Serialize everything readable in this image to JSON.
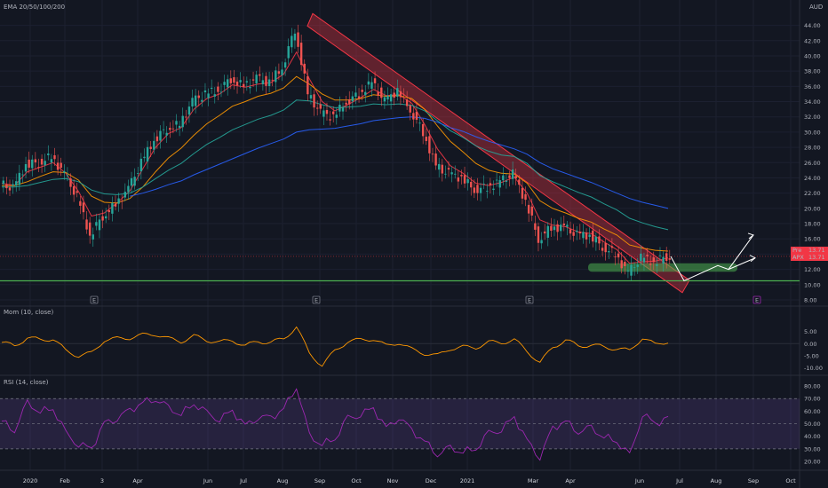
{
  "chart_data": [
    {
      "type": "candlestick",
      "title": "EMA 20/50/100/200",
      "currency": "AUD",
      "ylim": [
        8,
        45
      ],
      "y_ticks": [
        "44.00",
        "42.00",
        "40.00",
        "38.00",
        "36.00",
        "34.00",
        "32.00",
        "30.00",
        "28.00",
        "26.00",
        "24.00",
        "22.00",
        "20.00",
        "18.00",
        "16.00",
        "14.00",
        "12.00",
        "10.00",
        "8.00"
      ],
      "x_ticks": [
        "2020",
        "Feb",
        "3",
        "Apr",
        "Jun",
        "Jul",
        "Aug",
        "Sep",
        "Oct",
        "Nov",
        "Dec",
        "2021",
        "Mar",
        "Apr",
        "Jun",
        "Jul",
        "Aug",
        "Sep",
        "Oct"
      ],
      "close_series": [
        {
          "x": "2020-01",
          "y": 23.2
        },
        {
          "x": "2020-01-15",
          "y": 22.6
        },
        {
          "x": "2020-01-25",
          "y": 25.8
        },
        {
          "x": "2020-02-05",
          "y": 26.0
        },
        {
          "x": "2020-02-15",
          "y": 26.8
        },
        {
          "x": "2020-02-25",
          "y": 24.5
        },
        {
          "x": "2020-03-05",
          "y": 21.5
        },
        {
          "x": "2020-03-15",
          "y": 16.5
        },
        {
          "x": "2020-03-25",
          "y": 19.0
        },
        {
          "x": "2020-04-05",
          "y": 20.5
        },
        {
          "x": "2020-04-15",
          "y": 22.5
        },
        {
          "x": "2020-04-25",
          "y": 26.0
        },
        {
          "x": "2020-05-05",
          "y": 29.0
        },
        {
          "x": "2020-05-15",
          "y": 30.5
        },
        {
          "x": "2020-05-25",
          "y": 31.0
        },
        {
          "x": "2020-06-05",
          "y": 34.0
        },
        {
          "x": "2020-06-15",
          "y": 35.0
        },
        {
          "x": "2020-06-25",
          "y": 35.5
        },
        {
          "x": "2020-07-05",
          "y": 37.0
        },
        {
          "x": "2020-07-15",
          "y": 36.0
        },
        {
          "x": "2020-07-25",
          "y": 37.0
        },
        {
          "x": "2020-08-05",
          "y": 36.5
        },
        {
          "x": "2020-08-15",
          "y": 38.5
        },
        {
          "x": "2020-08-25",
          "y": 43.5
        },
        {
          "x": "2020-09-01",
          "y": 35.0
        },
        {
          "x": "2020-09-10",
          "y": 32.5
        },
        {
          "x": "2020-09-20",
          "y": 32.0
        },
        {
          "x": "2020-10-01",
          "y": 34.0
        },
        {
          "x": "2020-10-10",
          "y": 35.0
        },
        {
          "x": "2020-10-20",
          "y": 36.5
        },
        {
          "x": "2020-11-01",
          "y": 34.0
        },
        {
          "x": "2020-11-10",
          "y": 35.5
        },
        {
          "x": "2020-11-20",
          "y": 33.0
        },
        {
          "x": "2020-12-01",
          "y": 30.0
        },
        {
          "x": "2020-12-10",
          "y": 25.5
        },
        {
          "x": "2020-12-20",
          "y": 24.5
        },
        {
          "x": "2021-01-05",
          "y": 24.0
        },
        {
          "x": "2021-01-15",
          "y": 22.5
        },
        {
          "x": "2021-01-25",
          "y": 22.8
        },
        {
          "x": "2021-02-05",
          "y": 23.5
        },
        {
          "x": "2021-02-15",
          "y": 24.5
        },
        {
          "x": "2021-02-25",
          "y": 21.0
        },
        {
          "x": "2021-03-05",
          "y": 16.0
        },
        {
          "x": "2021-03-15",
          "y": 17.5
        },
        {
          "x": "2021-03-25",
          "y": 17.5
        },
        {
          "x": "2021-04-05",
          "y": 16.5
        },
        {
          "x": "2021-04-15",
          "y": 16.5
        },
        {
          "x": "2021-04-25",
          "y": 15.0
        },
        {
          "x": "2021-05-05",
          "y": 14.0
        },
        {
          "x": "2021-05-15",
          "y": 11.5
        },
        {
          "x": "2021-05-25",
          "y": 13.5
        },
        {
          "x": "2021-06-05",
          "y": 13.0
        },
        {
          "x": "2021-06-15",
          "y": 13.7
        }
      ],
      "ema": [
        {
          "name": "EMA 20",
          "color": "#f23645",
          "points": [
            23.3,
            23.0,
            24.8,
            25.4,
            26.0,
            24.6,
            22.2,
            19.0,
            19.4,
            20.7,
            22.3,
            25.2,
            28.0,
            29.8,
            30.6,
            33.0,
            34.4,
            35.0,
            36.2,
            35.9,
            36.3,
            36.5,
            37.6,
            40.5,
            37.0,
            34.0,
            32.8,
            33.6,
            34.5,
            35.6,
            34.8,
            34.9,
            33.8,
            31.0,
            27.8,
            25.6,
            24.6,
            23.3,
            23.0,
            23.4,
            24.1,
            22.0,
            18.5,
            17.8,
            17.6,
            16.9,
            16.7,
            15.6,
            14.6,
            12.8,
            13.0,
            13.1,
            13.5
          ]
        },
        {
          "name": "EMA 50",
          "color": "#ff9800",
          "points": [
            23.0,
            23.0,
            23.5,
            24.2,
            24.8,
            24.7,
            23.7,
            21.6,
            20.8,
            20.7,
            21.3,
            22.8,
            24.8,
            26.6,
            27.9,
            29.6,
            31.1,
            32.2,
            33.4,
            34.0,
            34.7,
            35.1,
            35.8,
            37.3,
            36.3,
            35.0,
            34.2,
            34.2,
            34.4,
            34.9,
            34.7,
            34.8,
            34.4,
            33.0,
            30.8,
            28.8,
            27.4,
            25.9,
            25.0,
            24.6,
            24.5,
            23.3,
            21.0,
            20.0,
            19.4,
            18.7,
            18.2,
            17.3,
            16.5,
            15.2,
            14.8,
            14.5,
            14.4
          ]
        },
        {
          "name": "EMA 100",
          "color": "#26a69a",
          "points": [
            22.8,
            22.8,
            23.0,
            23.4,
            23.8,
            23.9,
            23.5,
            22.4,
            21.9,
            21.8,
            22.0,
            22.8,
            23.9,
            25.0,
            25.9,
            27.2,
            28.4,
            29.3,
            30.3,
            31.0,
            31.7,
            32.2,
            32.9,
            34.2,
            34.1,
            33.6,
            33.2,
            33.3,
            33.4,
            33.7,
            33.6,
            33.7,
            33.5,
            32.8,
            31.5,
            30.2,
            29.3,
            28.2,
            27.5,
            27.0,
            26.8,
            25.9,
            24.3,
            23.5,
            22.8,
            22.1,
            21.5,
            20.6,
            19.8,
            18.7,
            18.1,
            17.6,
            17.2
          ]
        },
        {
          "name": "EMA 200",
          "color": "#2962ff",
          "points": [
            null,
            null,
            null,
            null,
            null,
            null,
            null,
            null,
            null,
            null,
            21.6,
            22.0,
            22.5,
            23.1,
            23.6,
            24.4,
            25.1,
            25.8,
            26.5,
            27.2,
            27.9,
            28.5,
            29.1,
            30.0,
            30.3,
            30.4,
            30.5,
            30.8,
            31.1,
            31.5,
            31.7,
            31.9,
            32.0,
            31.8,
            31.3,
            30.6,
            30.1,
            29.4,
            28.8,
            28.3,
            27.8,
            27.1,
            26.0,
            25.2,
            24.6,
            24.0,
            23.4,
            22.7,
            22.0,
            21.3,
            20.8,
            20.4,
            20.0
          ]
        }
      ],
      "price_labels": [
        {
          "label": "Pre",
          "value": "13.71",
          "color": "#f23645"
        },
        {
          "label": "APX",
          "value": "13.71",
          "color": "#f23645"
        }
      ],
      "annotations": [
        {
          "type": "channel",
          "color": "#f23645",
          "from": {
            "x": "2020-08-25",
            "y": 44.5
          },
          "to": {
            "x": "2021-07-01",
            "y": 10.0
          }
        },
        {
          "type": "zone",
          "color": "#4caf50",
          "ylim": [
            11.7,
            12.8
          ]
        },
        {
          "type": "horizontal_line",
          "color": "#4caf50",
          "y": 10.5
        },
        {
          "type": "projection",
          "color": "#ffffff",
          "path": [
            13.7,
            10.5,
            12.5,
            12.0,
            16.5
          ]
        },
        {
          "type": "projection",
          "color": "#ffffff",
          "path": [
            12.0,
            13.5
          ]
        }
      ],
      "event_markers": [
        "E",
        "E",
        "E",
        "E"
      ]
    },
    {
      "type": "line",
      "title": "Mom (10, close)",
      "ylim": [
        -12,
        10
      ],
      "y_ticks": [
        "5.00",
        "0.00",
        "-5.00",
        "-10.00"
      ],
      "series": [
        {
          "color": "#ff9800",
          "values": [
            0.5,
            -1.0,
            2.5,
            1.5,
            2.0,
            -3.0,
            -5.0,
            -4.0,
            1.5,
            2.0,
            2.5,
            3.5,
            4.0,
            2.0,
            1.0,
            3.0,
            1.5,
            0.5,
            1.5,
            -1.0,
            1.0,
            0.5,
            2.0,
            7.0,
            -4.0,
            -9.0,
            -3.0,
            1.0,
            1.5,
            2.0,
            -1.0,
            0.5,
            -2.5,
            -4.0,
            -5.0,
            -2.0,
            -1.5,
            -1.5,
            0.5,
            0.5,
            1.5,
            -3.0,
            -8.0,
            -1.5,
            1.5,
            -1.0,
            -0.5,
            -1.5,
            -2.0,
            -3.0,
            2.5,
            -0.5,
            1.0
          ]
        }
      ]
    },
    {
      "type": "line",
      "title": "RSI (14, close)",
      "ylim": [
        20,
        85
      ],
      "y_ticks": [
        "80.00",
        "70.00",
        "60.00",
        "50.00",
        "40.00",
        "30.00",
        "20.00"
      ],
      "bands": [
        30,
        50,
        70
      ],
      "series": [
        {
          "color": "#9c27b0",
          "values": [
            52,
            45,
            66,
            60,
            62,
            42,
            34,
            30,
            50,
            55,
            60,
            67,
            70,
            62,
            58,
            66,
            58,
            54,
            60,
            48,
            56,
            54,
            62,
            80,
            40,
            34,
            38,
            54,
            58,
            62,
            46,
            56,
            44,
            36,
            26,
            30,
            28,
            30,
            42,
            46,
            55,
            36,
            24,
            46,
            52,
            44,
            46,
            40,
            36,
            24,
            58,
            50,
            54
          ]
        }
      ]
    }
  ]
}
